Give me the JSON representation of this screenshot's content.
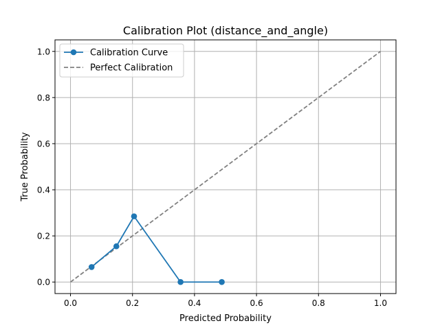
{
  "chart_data": {
    "type": "line",
    "title": "Calibration Plot (distance_and_angle)",
    "xlabel": "Predicted Probability",
    "ylabel": "True Probability",
    "xlim": [
      -0.05,
      1.05
    ],
    "ylim": [
      -0.05,
      1.05
    ],
    "xticks": [
      "0.0",
      "0.2",
      "0.4",
      "0.6",
      "0.8",
      "1.0"
    ],
    "yticks": [
      "0.0",
      "0.2",
      "0.4",
      "0.6",
      "0.8",
      "1.0"
    ],
    "grid": true,
    "legend_position": "top-left",
    "series": [
      {
        "name": "Calibration Curve",
        "style": "solid-with-circle-markers",
        "color": "#1f77b4",
        "x": [
          0.068,
          0.148,
          0.205,
          0.355,
          0.488
        ],
        "y": [
          0.065,
          0.155,
          0.285,
          0.0,
          0.0
        ]
      },
      {
        "name": "Perfect Calibration",
        "style": "dashed",
        "color": "#808080",
        "x": [
          0.0,
          1.0
        ],
        "y": [
          0.0,
          1.0
        ]
      }
    ]
  }
}
